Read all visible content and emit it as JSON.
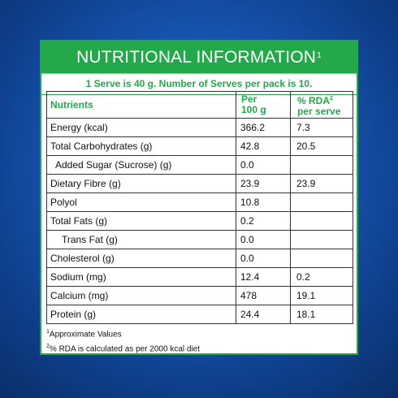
{
  "title": {
    "text": "NUTRITIONAL INFORMATION",
    "superscript": "1"
  },
  "serving_info": "1 Serve is 40 g. Number of Serves per pack is 10.",
  "table": {
    "headers": {
      "nutrients": "Nutrients",
      "per_line1": "Per",
      "per_line2": "100 g",
      "rda_line1": "% RDA",
      "rda_superscript": "2",
      "rda_line2": "per serve"
    },
    "rows": [
      {
        "name": "Energy (kcal)",
        "per100g": "366.2",
        "rda": "7.3"
      },
      {
        "name": "Total Carbohydrates (g)",
        "per100g": "42.8",
        "rda": "20.5"
      },
      {
        "name": "Added Sugar (Sucrose) (g)",
        "per100g": "0.0",
        "rda": ""
      },
      {
        "name": "Dietary Fibre (g)",
        "per100g": "23.9",
        "rda": "23.9"
      },
      {
        "name": "Polyol",
        "per100g": "10.8",
        "rda": ""
      },
      {
        "name": "Total Fats (g)",
        "per100g": "0.2",
        "rda": ""
      },
      {
        "name": "Trans Fat (g)",
        "per100g": "0.0",
        "rda": ""
      },
      {
        "name": "Cholesterol (g)",
        "per100g": "0.0",
        "rda": ""
      },
      {
        "name": "Sodium (mg)",
        "per100g": "12.4",
        "rda": "0.2"
      },
      {
        "name": "Calcium (mg)",
        "per100g": "478",
        "rda": "19.1"
      },
      {
        "name": "Protein (g)",
        "per100g": "24.4",
        "rda": "18.1"
      }
    ]
  },
  "footnotes": [
    {
      "sup": "1",
      "text": "Approximate Values"
    },
    {
      "sup": "2",
      "text": "% RDA  is calculated as per 2000 kcal diet"
    }
  ],
  "colors": {
    "background_blue": "#1656b3",
    "accent_green": "#23a84a",
    "panel_white": "#ffffff",
    "text_dark": "#111111"
  }
}
